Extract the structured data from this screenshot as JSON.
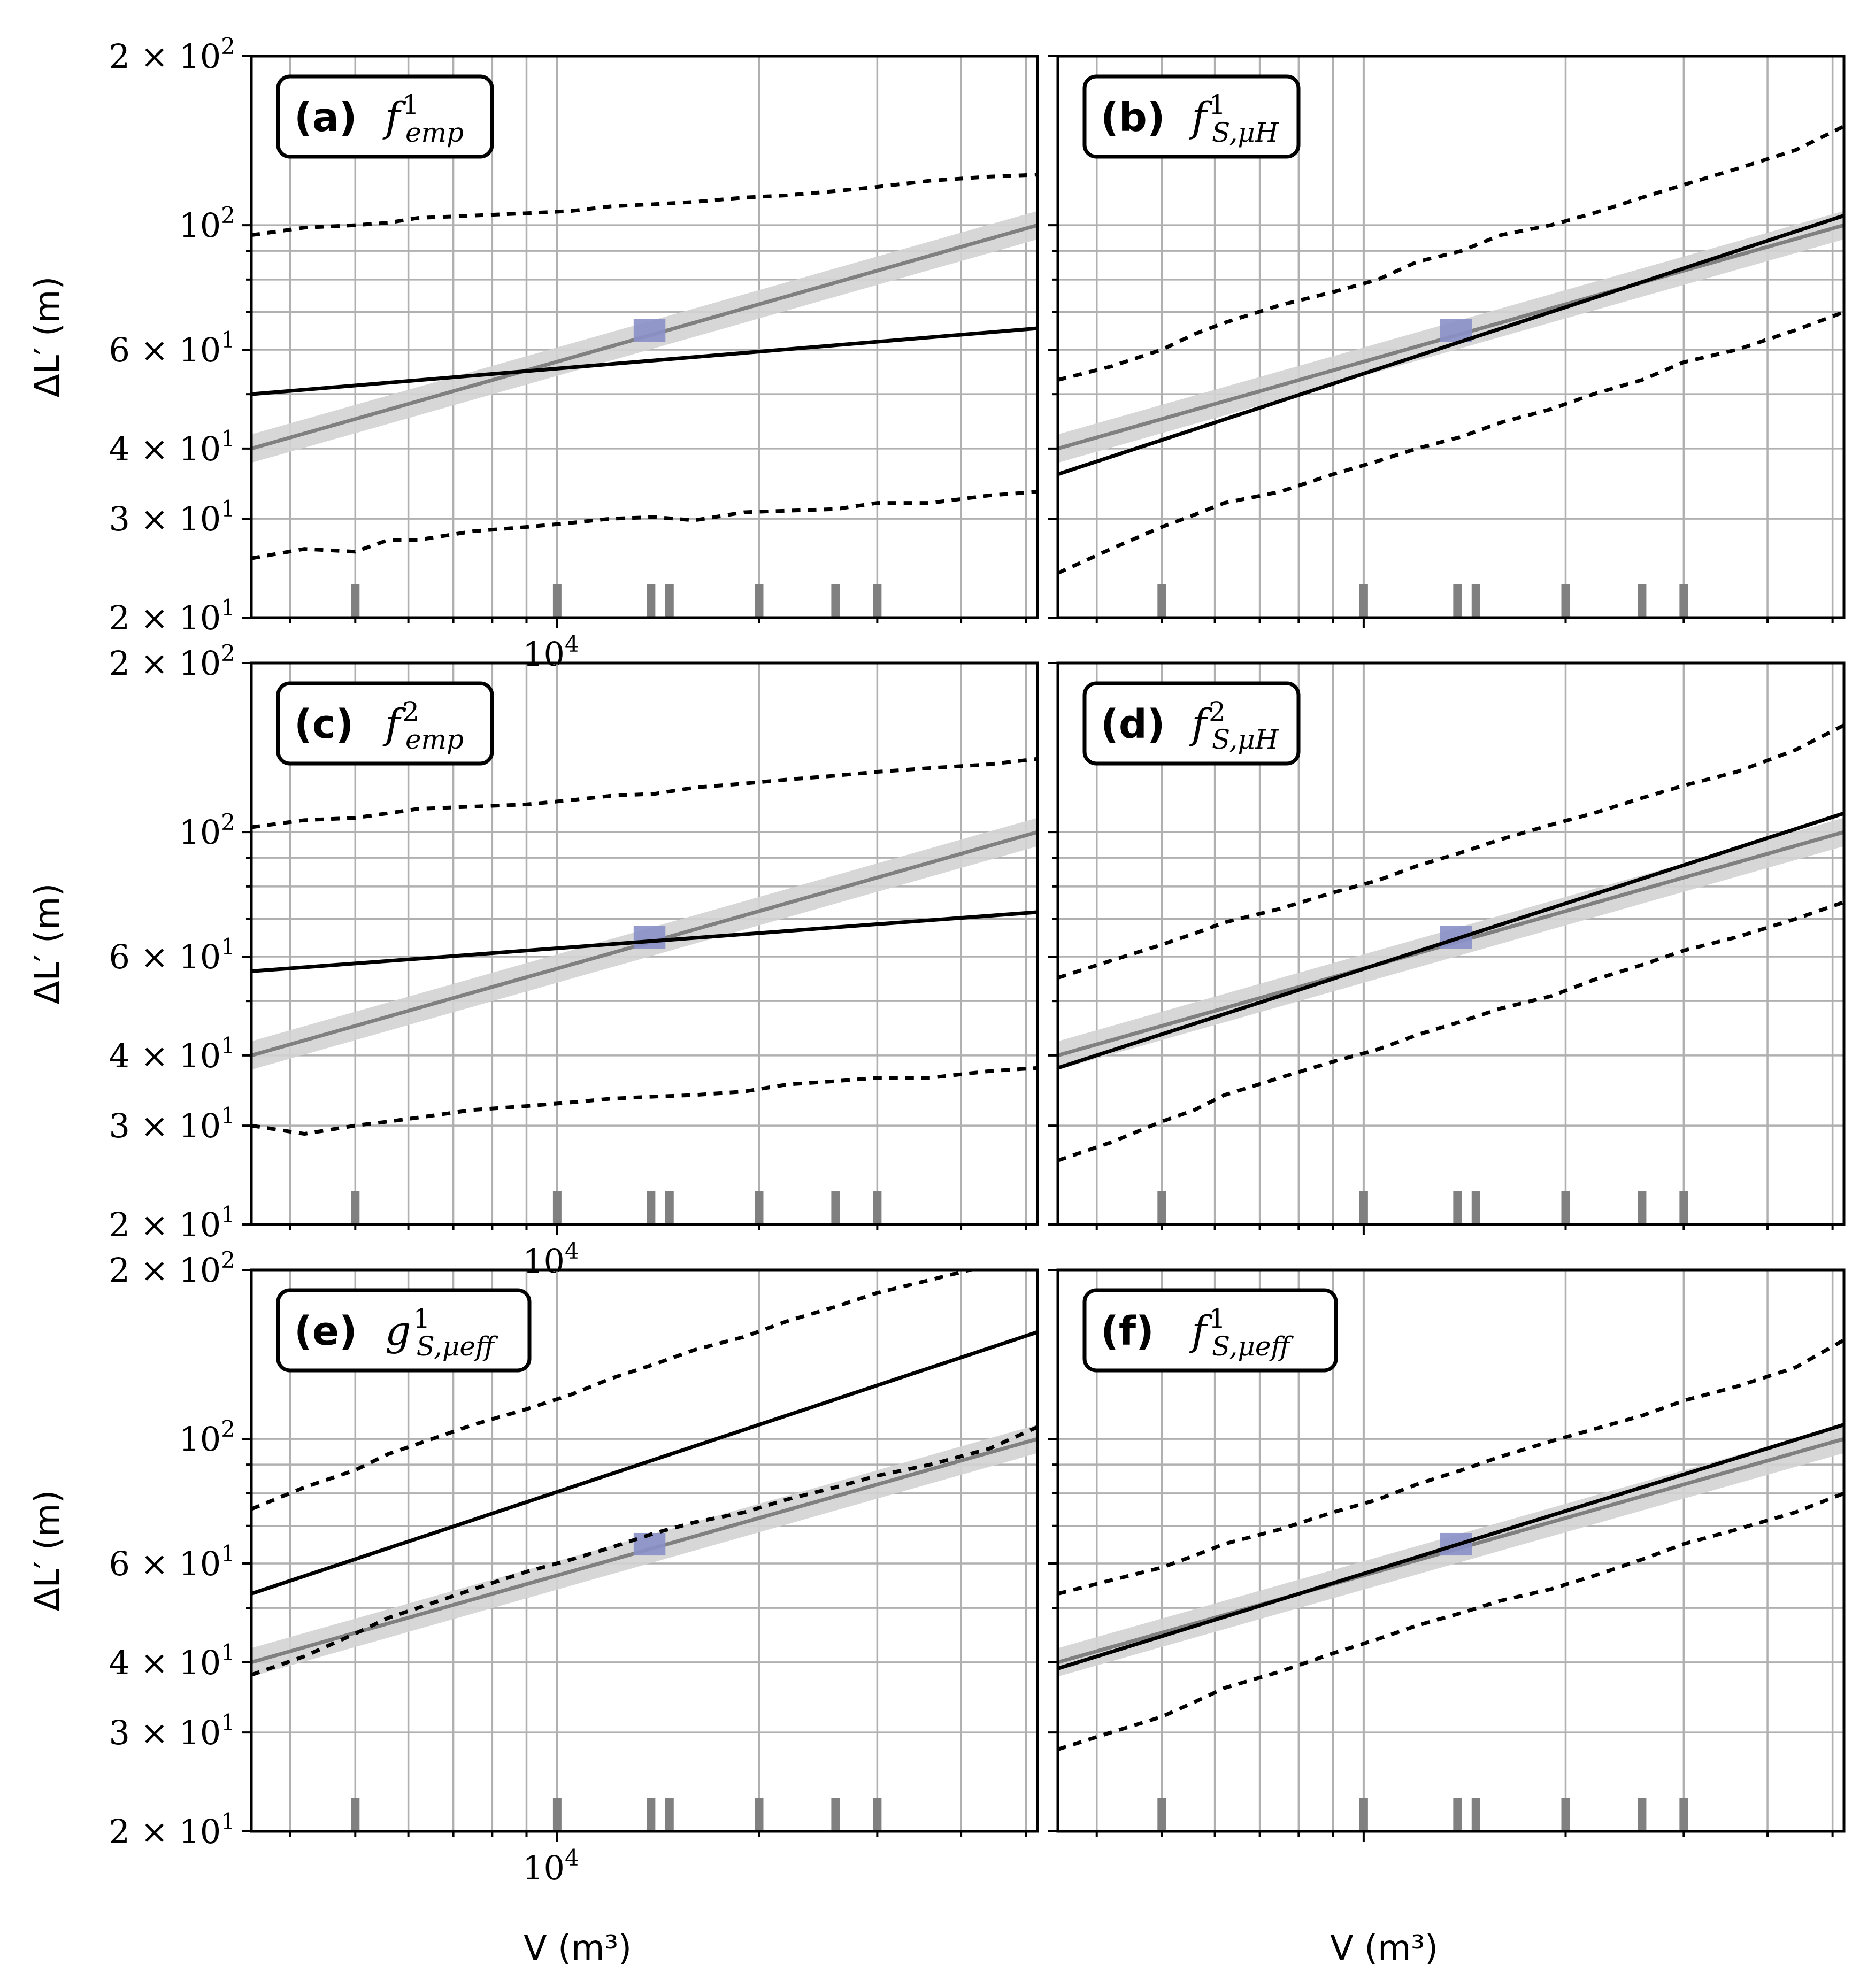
{
  "colors": {
    "grid": "#b0b0b0",
    "reference_line": "#808080",
    "reference_band": "#d3d3d3",
    "model_line": "#000000",
    "highlight_box": "#8a90c8",
    "rug_marks": "#808080"
  },
  "axis_labels": {
    "y": "ΔL′ (m)",
    "x": "V (m³)"
  },
  "chart_data": [
    {
      "type": "line",
      "panel": "a",
      "label_bold": "(a)",
      "label_math": "f_emp^1",
      "xscale": "log",
      "yscale": "log",
      "xlim": [
        3500,
        52000
      ],
      "ylim": [
        20,
        200
      ],
      "yticks": [
        "2 × 10^1",
        "3 × 10^1",
        "4 × 10^1",
        "6 × 10^1",
        "10^2",
        "2 × 10^2"
      ],
      "xticks": [
        "10^4"
      ],
      "grid": true,
      "reference": {
        "x": [
          3500,
          52000
        ],
        "y": [
          40,
          100
        ],
        "band_factor": 1.06
      },
      "highlight": {
        "x": [
          13000,
          14500
        ],
        "y": [
          62,
          68
        ]
      },
      "model": {
        "x": [
          3500,
          52000
        ],
        "y": [
          50,
          65.5
        ]
      },
      "upper": {
        "x": [
          3500,
          4200,
          5000,
          5600,
          6200,
          7500,
          9000,
          10500,
          12000,
          14000,
          16000,
          19000,
          22000,
          26000,
          30000,
          36000,
          44000,
          52000
        ],
        "y": [
          96,
          99,
          100,
          101,
          103,
          104,
          105,
          106,
          108,
          109,
          110,
          112,
          113,
          115,
          117,
          120,
          122,
          123
        ]
      },
      "lower": {
        "x": [
          3500,
          4200,
          5000,
          5600,
          6200,
          7500,
          9000,
          10500,
          12000,
          14000,
          16000,
          19000,
          22000,
          26000,
          30000,
          36000,
          44000,
          52000
        ],
        "y": [
          25.5,
          26.5,
          26.2,
          27.5,
          27.5,
          28.5,
          29,
          29.5,
          30,
          30.2,
          29.8,
          30.8,
          31,
          31.2,
          32,
          32,
          33,
          33.5
        ]
      },
      "rug": [
        5000,
        10000,
        13800,
        14700,
        20000,
        26000,
        30000
      ]
    },
    {
      "type": "line",
      "panel": "b",
      "label_bold": "(b)",
      "label_math": "f_{S,μ_H}^1",
      "xscale": "log",
      "yscale": "log",
      "xlim": [
        3500,
        52000
      ],
      "ylim": [
        20,
        200
      ],
      "yticks": [],
      "xticks": [],
      "grid": true,
      "reference": {
        "x": [
          3500,
          52000
        ],
        "y": [
          40,
          100
        ],
        "band_factor": 1.06
      },
      "highlight": {
        "x": [
          13000,
          14500
        ],
        "y": [
          62,
          68
        ]
      },
      "model": {
        "x": [
          3500,
          52000
        ],
        "y": [
          36,
          104
        ]
      },
      "upper": {
        "x": [
          3500,
          4200,
          5000,
          5600,
          6200,
          7500,
          9000,
          10500,
          12000,
          14000,
          16000,
          19000,
          22000,
          26000,
          30000,
          36000,
          44000,
          52000
        ],
        "y": [
          53,
          56,
          60,
          64,
          67,
          72,
          76,
          80,
          86,
          90,
          96,
          100,
          105,
          112,
          118,
          126,
          136,
          150
        ]
      },
      "lower": {
        "x": [
          3500,
          4200,
          5000,
          5600,
          6200,
          7500,
          9000,
          10500,
          12000,
          14000,
          16000,
          19000,
          22000,
          26000,
          30000,
          36000,
          44000,
          52000
        ],
        "y": [
          24,
          26.5,
          29,
          30.5,
          32,
          33.5,
          36,
          38,
          40,
          42,
          44.5,
          47,
          50,
          53,
          57,
          60,
          65,
          70
        ]
      },
      "rug": [
        5000,
        10000,
        13800,
        14700,
        20000,
        26000,
        30000
      ]
    },
    {
      "type": "line",
      "panel": "c",
      "label_bold": "(c)",
      "label_math": "f_emp^2",
      "xscale": "log",
      "yscale": "log",
      "xlim": [
        3500,
        52000
      ],
      "ylim": [
        20,
        200
      ],
      "yticks": [
        "2 × 10^1",
        "3 × 10^1",
        "4 × 10^1",
        "6 × 10^1",
        "10^2",
        "2 × 10^2"
      ],
      "xticks": [
        "10^4"
      ],
      "grid": true,
      "reference": {
        "x": [
          3500,
          52000
        ],
        "y": [
          40,
          100
        ],
        "band_factor": 1.06
      },
      "highlight": {
        "x": [
          13000,
          14500
        ],
        "y": [
          62,
          68
        ]
      },
      "model": {
        "x": [
          3500,
          52000
        ],
        "y": [
          56.5,
          72
        ]
      },
      "upper": {
        "x": [
          3500,
          4200,
          5000,
          5600,
          6200,
          7500,
          9000,
          10500,
          12000,
          14000,
          16000,
          19000,
          22000,
          26000,
          30000,
          36000,
          44000,
          52000
        ],
        "y": [
          102,
          105,
          106,
          108,
          110,
          111,
          112,
          114,
          116,
          117,
          120,
          122,
          124,
          126,
          128,
          130,
          132,
          135
        ]
      },
      "lower": {
        "x": [
          3500,
          4200,
          5000,
          5600,
          6200,
          7500,
          9000,
          10500,
          12000,
          14000,
          16000,
          19000,
          22000,
          26000,
          30000,
          36000,
          44000,
          52000
        ],
        "y": [
          30,
          29,
          30,
          30.5,
          31,
          32,
          32.5,
          33,
          33.5,
          33.8,
          34,
          34.5,
          35.5,
          36,
          36.5,
          36.5,
          37.5,
          38
        ]
      },
      "rug": [
        5000,
        10000,
        13800,
        14700,
        20000,
        26000,
        30000
      ]
    },
    {
      "type": "line",
      "panel": "d",
      "label_bold": "(d)",
      "label_math": "f_{S,μ_H}^2",
      "xscale": "log",
      "yscale": "log",
      "xlim": [
        3500,
        52000
      ],
      "ylim": [
        20,
        200
      ],
      "yticks": [],
      "xticks": [],
      "grid": true,
      "reference": {
        "x": [
          3500,
          52000
        ],
        "y": [
          40,
          100
        ],
        "band_factor": 1.06
      },
      "highlight": {
        "x": [
          13000,
          14500
        ],
        "y": [
          62,
          68
        ]
      },
      "model": {
        "x": [
          3500,
          52000
        ],
        "y": [
          38,
          108
        ]
      },
      "upper": {
        "x": [
          3500,
          4200,
          5000,
          5600,
          6200,
          7500,
          9000,
          10500,
          12000,
          14000,
          16000,
          19000,
          22000,
          26000,
          30000,
          36000,
          44000,
          52000
        ],
        "y": [
          55,
          59,
          63,
          66,
          69,
          73,
          78,
          82,
          87,
          92,
          97,
          103,
          108,
          115,
          121,
          128,
          140,
          155
        ]
      },
      "lower": {
        "x": [
          3500,
          4200,
          5000,
          5600,
          6200,
          7500,
          9000,
          10500,
          12000,
          14000,
          16000,
          19000,
          22000,
          26000,
          30000,
          36000,
          44000,
          52000
        ],
        "y": [
          26,
          28,
          30.5,
          32,
          34,
          36.5,
          39,
          41,
          43.5,
          46,
          48.5,
          51,
          54.5,
          58,
          61.5,
          65,
          70,
          75
        ]
      },
      "rug": [
        5000,
        10000,
        13800,
        14700,
        20000,
        26000,
        30000
      ]
    },
    {
      "type": "line",
      "panel": "e",
      "label_bold": "(e)",
      "label_math": "g_{S,μ_eff}^1",
      "xscale": "log",
      "yscale": "log",
      "xlim": [
        3500,
        52000
      ],
      "ylim": [
        20,
        200
      ],
      "yticks": [
        "2 × 10^1",
        "3 × 10^1",
        "4 × 10^1",
        "6 × 10^1",
        "10^2",
        "2 × 10^2"
      ],
      "xticks": [
        "10^4"
      ],
      "grid": true,
      "reference": {
        "x": [
          3500,
          52000
        ],
        "y": [
          40,
          100
        ],
        "band_factor": 1.06
      },
      "highlight": {
        "x": [
          13000,
          14500
        ],
        "y": [
          62,
          68
        ]
      },
      "model": {
        "x": [
          3500,
          52000
        ],
        "y": [
          53,
          155
        ]
      },
      "upper": {
        "x": [
          3500,
          4200,
          5000,
          5600,
          6200,
          7500,
          9000,
          10500,
          12000,
          14000,
          16000,
          19000,
          22000,
          26000,
          30000,
          36000,
          44000,
          52000
        ],
        "y": [
          75,
          82,
          88,
          94,
          98,
          106,
          113,
          120,
          128,
          136,
          144,
          152,
          162,
          172,
          182,
          192,
          204,
          215
        ]
      },
      "lower": {
        "x": [
          3500,
          4200,
          5000,
          5600,
          6200,
          7500,
          9000,
          10500,
          12000,
          14000,
          16000,
          19000,
          22000,
          26000,
          30000,
          36000,
          44000,
          52000
        ],
        "y": [
          38,
          41,
          45,
          48,
          50,
          54,
          58,
          61,
          64,
          68,
          71,
          74,
          78,
          82,
          86,
          90,
          96,
          105
        ]
      },
      "rug": [
        5000,
        10000,
        13800,
        14700,
        20000,
        26000,
        30000
      ]
    },
    {
      "type": "line",
      "panel": "f",
      "label_bold": "(f)",
      "label_math": "f_{S,μ_eff}^1",
      "xscale": "log",
      "yscale": "log",
      "xlim": [
        3500,
        52000
      ],
      "ylim": [
        20,
        200
      ],
      "yticks": [],
      "xticks": [],
      "grid": true,
      "reference": {
        "x": [
          3500,
          52000
        ],
        "y": [
          40,
          100
        ],
        "band_factor": 1.06
      },
      "highlight": {
        "x": [
          13000,
          14500
        ],
        "y": [
          62,
          68
        ]
      },
      "model": {
        "x": [
          3500,
          52000
        ],
        "y": [
          39,
          106
        ]
      },
      "upper": {
        "x": [
          3500,
          4200,
          5000,
          5600,
          6200,
          7500,
          9000,
          10500,
          12000,
          14000,
          16000,
          19000,
          22000,
          26000,
          30000,
          36000,
          44000,
          52000
        ],
        "y": [
          53,
          56,
          59,
          62,
          65,
          69,
          74,
          78,
          83,
          88,
          93,
          99,
          104,
          110,
          117,
          124,
          134,
          150
        ]
      },
      "lower": {
        "x": [
          3500,
          4200,
          5000,
          5600,
          6200,
          7500,
          9000,
          10500,
          12000,
          14000,
          16000,
          19000,
          22000,
          26000,
          30000,
          36000,
          44000,
          52000
        ],
        "y": [
          28,
          30,
          32,
          34,
          36,
          38.5,
          41.5,
          44,
          46.5,
          49,
          51.5,
          54,
          57,
          61,
          65,
          69,
          74,
          80
        ]
      },
      "rug": [
        5000,
        10000,
        13800,
        14700,
        20000,
        26000,
        30000
      ]
    }
  ]
}
